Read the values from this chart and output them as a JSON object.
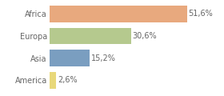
{
  "categories": [
    "Africa",
    "Europa",
    "Asia",
    "America"
  ],
  "values": [
    51.6,
    30.6,
    15.2,
    2.6
  ],
  "labels": [
    "51,6%",
    "30,6%",
    "15,2%",
    "2,6%"
  ],
  "bar_colors": [
    "#e8a97e",
    "#b5c98e",
    "#7a9ec0",
    "#e8d87a"
  ],
  "background_color": "#ffffff",
  "xlim": [
    0,
    63
  ],
  "bar_height": 0.75,
  "label_fontsize": 7.0,
  "tick_fontsize": 7.0,
  "text_color": "#666666"
}
